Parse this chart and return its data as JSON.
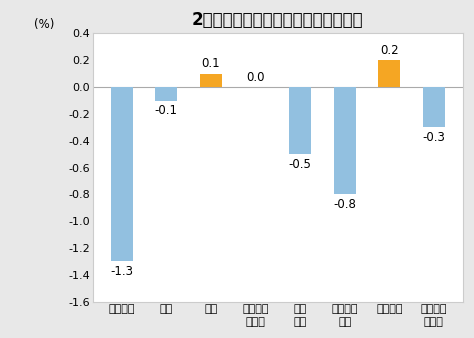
{
  "title": "2月份居民消费价格分类别环比涨跌幅",
  "ylabel": "(%)",
  "categories": [
    "食品烟酒",
    "衣着",
    "居住",
    "生活用品\n及服务",
    "交通\n通信",
    "教育文化\n娱乐",
    "医疗保健",
    "其他用品\n及服务"
  ],
  "values": [
    -1.3,
    -0.1,
    0.1,
    0.0,
    -0.5,
    -0.8,
    0.2,
    -0.3
  ],
  "bar_colors": [
    "#92c0e0",
    "#92c0e0",
    "#f5a623",
    "#92c0e0",
    "#92c0e0",
    "#92c0e0",
    "#f5a623",
    "#92c0e0"
  ],
  "ylim": [
    -1.6,
    0.4
  ],
  "yticks": [
    -1.6,
    -1.4,
    -1.2,
    -1.0,
    -0.8,
    -0.6,
    -0.4,
    -0.2,
    0.0,
    0.2,
    0.4
  ],
  "label_fontsize": 8.5,
  "title_fontsize": 12,
  "tick_fontsize": 8,
  "background_color": "#e8e8e8",
  "plot_bg_color": "#ffffff"
}
